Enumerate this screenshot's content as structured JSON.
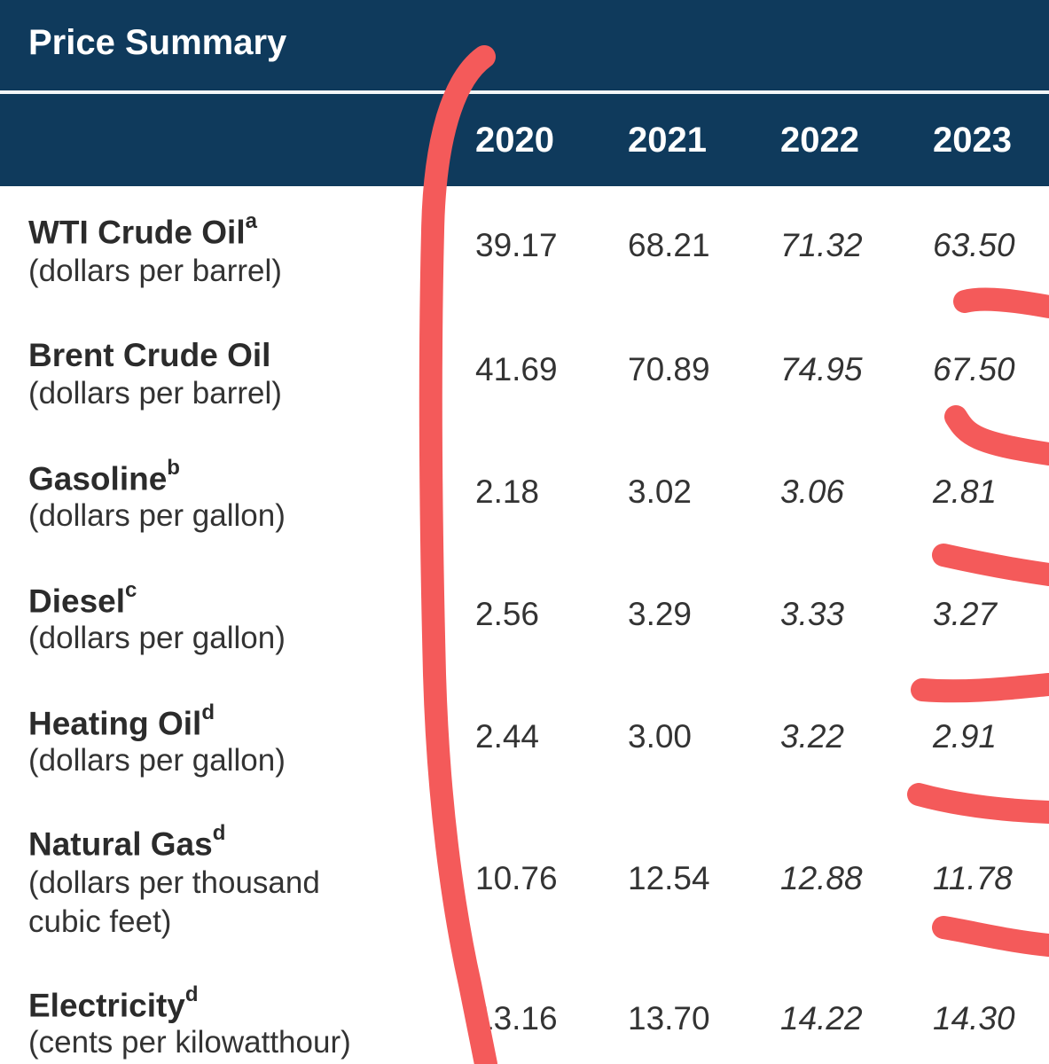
{
  "title": "Price Summary",
  "years": [
    "2020",
    "2021",
    "2022",
    "2023"
  ],
  "rows": [
    {
      "name": "WTI Crude Oil",
      "sup": "a",
      "unit": "(dollars per barrel)",
      "values": [
        "39.17",
        "68.21",
        "71.32",
        "63.50"
      ]
    },
    {
      "name": "Brent Crude Oil",
      "sup": "",
      "unit": "(dollars per barrel)",
      "values": [
        "41.69",
        "70.89",
        "74.95",
        "67.50"
      ]
    },
    {
      "name": "Gasoline",
      "sup": "b",
      "unit": "(dollars per gallon)",
      "values": [
        "2.18",
        "3.02",
        "3.06",
        "2.81"
      ]
    },
    {
      "name": "Diesel",
      "sup": "c",
      "unit": "(dollars per gallon)",
      "values": [
        "2.56",
        "3.29",
        "3.33",
        "3.27"
      ]
    },
    {
      "name": "Heating Oil",
      "sup": "d",
      "unit": "(dollars per gallon)",
      "values": [
        "2.44",
        "3.00",
        "3.22",
        "2.91"
      ]
    },
    {
      "name": "Natural Gas",
      "sup": "d",
      "unit_lines": [
        "(dollars per thousand",
        "cubic feet)"
      ],
      "values": [
        "10.76",
        "12.54",
        "12.88",
        "11.78"
      ]
    },
    {
      "name": "Electricity",
      "sup": "d",
      "unit": "(cents per kilowatthour)",
      "values": [
        "13.16",
        "13.70",
        "14.22",
        "14.30"
      ]
    }
  ],
  "annotation_color": "#f45a5a",
  "header_color": "#0f3a5c"
}
